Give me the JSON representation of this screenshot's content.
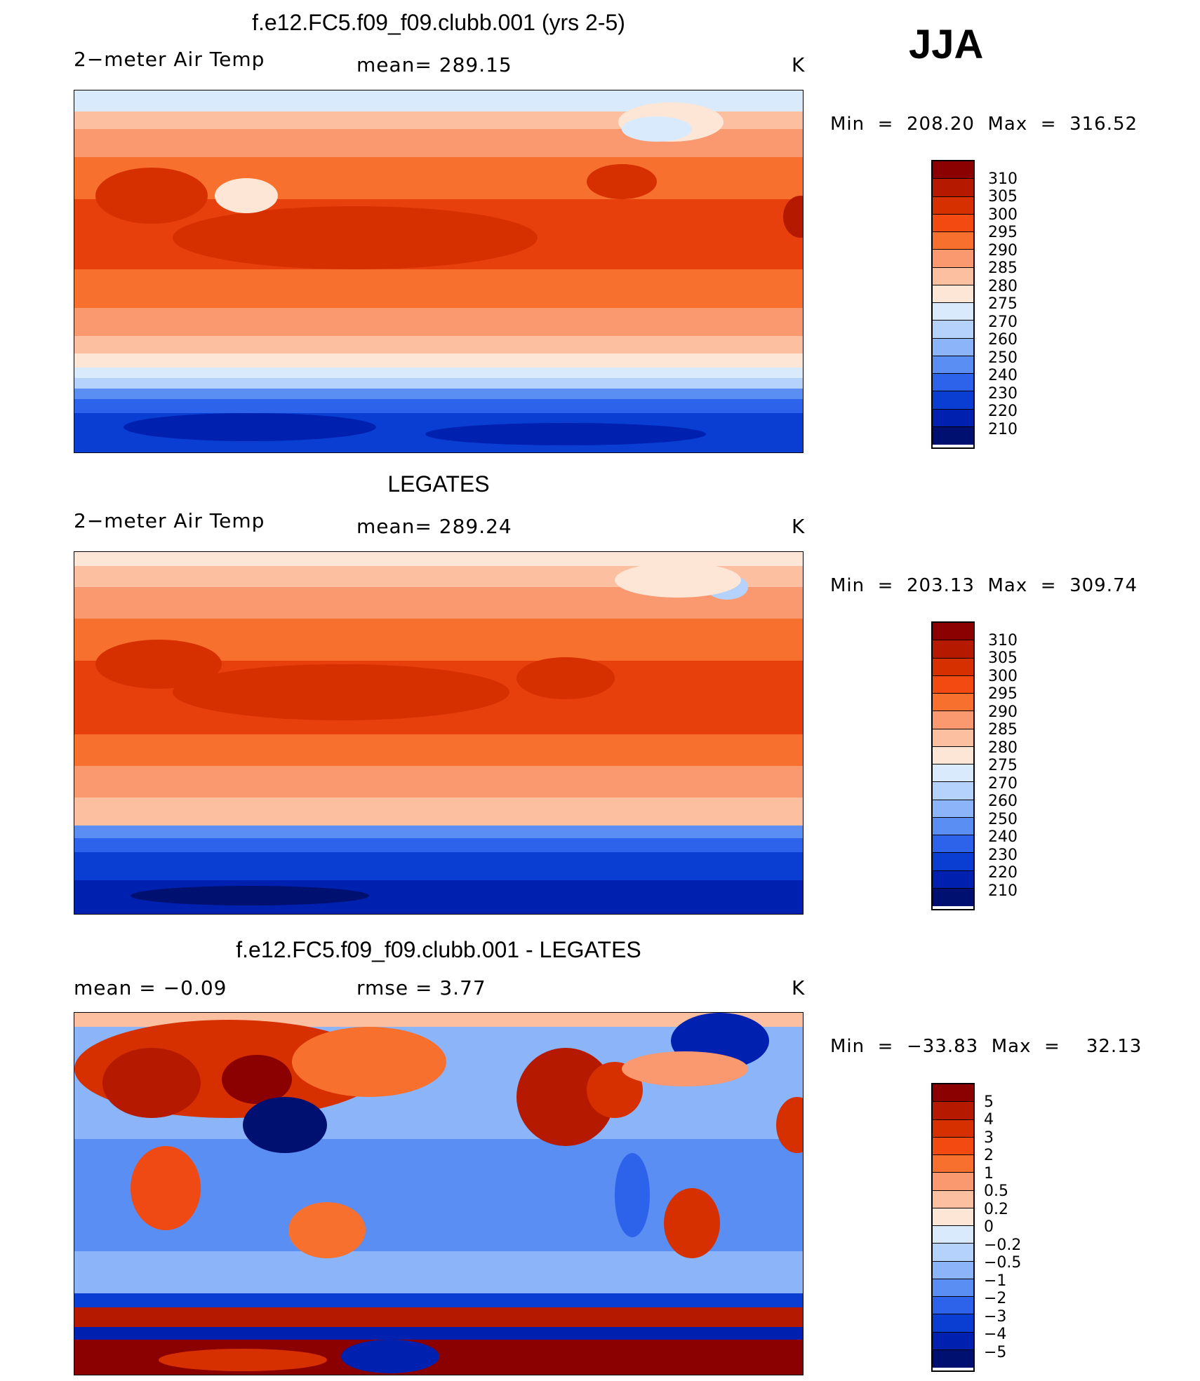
{
  "season": "JJA",
  "panels": [
    {
      "title": "f.e12.FC5.f09_f09.clubb.001 (yrs 2-5)",
      "left_label": "2−meter Air Temp",
      "mid_label": "mean=  289.15",
      "units": "K",
      "minmax": "Min  =  208.20  Max  =  316.52"
    },
    {
      "title": "LEGATES",
      "left_label": "2−meter Air Temp",
      "mid_label": "mean=  289.24",
      "units": "K",
      "minmax": "Min  =  203.13  Max  =  309.74"
    },
    {
      "title": "f.e12.FC5.f09_f09.clubb.001 - LEGATES",
      "left_label": "mean  =     −0.09",
      "mid_label": "rmse  =      3.77",
      "units": "K",
      "minmax": "Min  =  −33.83  Max  =    32.13"
    }
  ],
  "colorbars": {
    "temperature": {
      "labels": [
        "310",
        "305",
        "300",
        "295",
        "290",
        "285",
        "280",
        "275",
        "270",
        "260",
        "250",
        "240",
        "230",
        "220",
        "210"
      ],
      "colors": [
        "#8b0000",
        "#b51a00",
        "#d63000",
        "#f24a10",
        "#f7702e",
        "#fa9870",
        "#fcc0a0",
        "#fde6d5",
        "#d8eafc",
        "#b4d2fb",
        "#8cb4f8",
        "#5a8ef2",
        "#2d62ea",
        "#0a3ed2",
        "#0020b0",
        "#001070"
      ]
    },
    "difference": {
      "labels": [
        "5",
        "4",
        "3",
        "2",
        "1",
        "0.5",
        "0.2",
        "0",
        "−0.2",
        "−0.5",
        "−1",
        "−2",
        "−3",
        "−4",
        "−5"
      ],
      "colors": [
        "#8b0000",
        "#b51a00",
        "#d63000",
        "#f24a10",
        "#f7702e",
        "#fa9870",
        "#fcc0a0",
        "#fde6d5",
        "#d8eafc",
        "#b4d2fb",
        "#8cb4f8",
        "#5a8ef2",
        "#2d62ea",
        "#0a3ed2",
        "#0020b0",
        "#001070"
      ]
    }
  }
}
